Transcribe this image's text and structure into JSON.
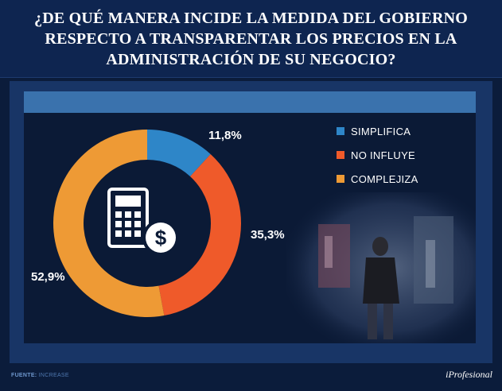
{
  "header": {
    "title_line1": "¿DE QUÉ MANERA INCIDE LA MEDIDA DEL GOBIERNO",
    "title_line2": "RESPECTO A TRANSPARENTAR LOS PRECIOS EN LA",
    "title_line3": "ADMINISTRACIÓN DE SU NEGOCIO?"
  },
  "chart_data": {
    "type": "pie",
    "donut": true,
    "title": "¿DE QUÉ MANERA INCIDE LA MEDIDA DEL GOBIERNO RESPECTO A TRANSPARENTAR LOS PRECIOS EN LA ADMINISTRACIÓN DE SU NEGOCIO?",
    "categories": [
      "SIMPLIFICA",
      "NO INFLUYE",
      "COMPLEJIZA"
    ],
    "values": [
      11.8,
      35.3,
      52.9
    ],
    "labels": [
      "11,8%",
      "35,3%",
      "52,9%"
    ],
    "colors": [
      "#2e86c8",
      "#ef5a2a",
      "#ee9a35"
    ],
    "legend_position": "top-right",
    "center_icon": "calculator-dollar-icon"
  },
  "footer": {
    "source_label": "FUENTE:",
    "source_value": "INCREASE",
    "brand": "iProfesional"
  },
  "colors": {
    "background": "#0b1c3b",
    "panel": "#183566",
    "strip": "#3a72ad"
  }
}
